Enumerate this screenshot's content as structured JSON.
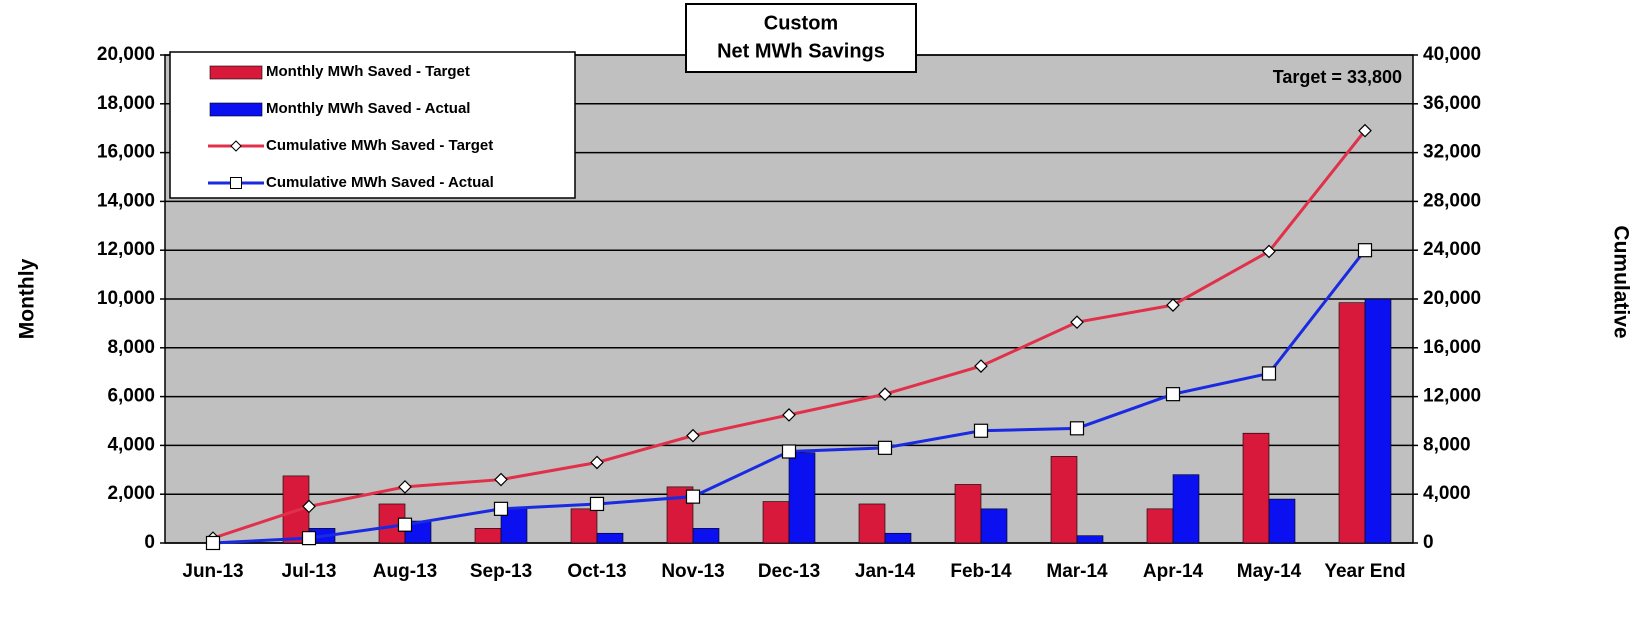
{
  "chart_data": {
    "type": "bar_line",
    "title": [
      "Custom",
      "Net MWh Savings"
    ],
    "annotation": "Target = 33,800",
    "ylabel": "Monthly",
    "y2label": "Cumulative",
    "categories": [
      "Jun-13",
      "Jul-13",
      "Aug-13",
      "Sep-13",
      "Oct-13",
      "Nov-13",
      "Dec-13",
      "Jan-14",
      "Feb-14",
      "Mar-14",
      "Apr-14",
      "May-14",
      "Year End"
    ],
    "series": [
      {
        "name": "Monthly MWh Saved - Target",
        "type": "bar",
        "color": "#d9193c",
        "values": [
          0,
          2750,
          1600,
          600,
          1400,
          2300,
          1700,
          1600,
          2400,
          3550,
          1400,
          4500,
          9850
        ]
      },
      {
        "name": "Monthly MWh Saved - Actual",
        "type": "bar",
        "color": "#0a10f0",
        "values": [
          0,
          600,
          900,
          1400,
          400,
          600,
          3700,
          400,
          1400,
          300,
          2800,
          1800,
          10000
        ]
      },
      {
        "name": "Cumulative MWh Saved - Target",
        "type": "line",
        "axis": "y2",
        "marker": "diamond",
        "color": "#e0304a",
        "values": [
          400,
          3000,
          4600,
          5200,
          6600,
          8800,
          10500,
          12200,
          14500,
          18100,
          19500,
          23900,
          33800
        ]
      },
      {
        "name": "Cumulative MWh Saved - Actual",
        "type": "line",
        "axis": "y2",
        "marker": "square",
        "color": "#1a2ae0",
        "values": [
          0,
          400,
          1500,
          2800,
          3200,
          3800,
          7500,
          7800,
          9200,
          9400,
          12200,
          13900,
          24000
        ]
      }
    ],
    "ylim": [
      0,
      20000
    ],
    "yticks": [
      0,
      {
        "value": 2000,
        "label": "2,000"
      },
      {
        "value": 4000,
        "label": "4,000"
      },
      {
        "value": 6000,
        "label": "6,000"
      },
      {
        "value": 8000,
        "label": "8,000"
      },
      {
        "value": 10000,
        "label": "10,000"
      },
      {
        "value": 12000,
        "label": "12,000"
      },
      {
        "value": 14000,
        "label": "14,000"
      },
      {
        "value": 16000,
        "label": "16,000"
      },
      {
        "value": 18000,
        "label": "18,000"
      },
      {
        "value": 20000,
        "label": "20,000"
      }
    ],
    "y2lim": [
      0,
      40000
    ],
    "y2ticks": [
      0,
      {
        "value": 4000,
        "label": "4,000"
      },
      {
        "value": 8000,
        "label": "8,000"
      },
      {
        "value": 12000,
        "label": "12,000"
      },
      {
        "value": 16000,
        "label": "16,000"
      },
      {
        "value": 20000,
        "label": "20,000"
      },
      {
        "value": 24000,
        "label": "24,000"
      },
      {
        "value": 28000,
        "label": "28,000"
      },
      {
        "value": 32000,
        "label": "32,000"
      },
      {
        "value": 36000,
        "label": "36,000"
      },
      {
        "value": 40000,
        "label": "40,000"
      }
    ],
    "grid": true,
    "legend": "upper left"
  }
}
